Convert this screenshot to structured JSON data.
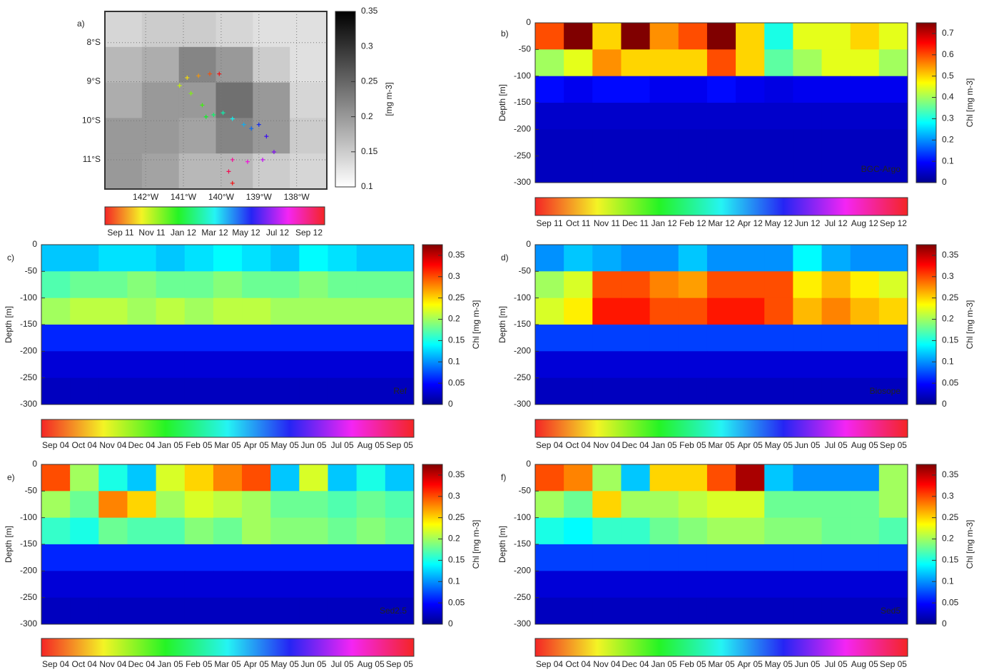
{
  "chart_data": [
    {
      "type": "map",
      "label": "a)",
      "xlim": [
        -143.08,
        -137.2
      ],
      "ylim": [
        -11.75,
        -7.2
      ],
      "xticks": [
        {
          "value": -142,
          "label": "142°W"
        },
        {
          "value": -141,
          "label": "141°W"
        },
        {
          "value": -140,
          "label": "140°W"
        },
        {
          "value": -139,
          "label": "139°W"
        },
        {
          "value": -138,
          "label": "138°W"
        }
      ],
      "yticks": [
        {
          "value": -8,
          "label": "8°S"
        },
        {
          "value": -9,
          "label": "9°S"
        },
        {
          "value": -10,
          "label": "10°S"
        },
        {
          "value": -11,
          "label": "11°S"
        }
      ],
      "field": [
        [
          0.14,
          0.15,
          0.15,
          0.14,
          0.13,
          0.13
        ],
        [
          0.17,
          0.18,
          0.22,
          0.2,
          0.15,
          0.13
        ],
        [
          0.18,
          0.2,
          0.2,
          0.24,
          0.2,
          0.14
        ],
        [
          0.2,
          0.2,
          0.19,
          0.22,
          0.2,
          0.15
        ],
        [
          0.2,
          0.19,
          0.17,
          0.17,
          0.15,
          0.14
        ]
      ],
      "zlim": [
        0.1,
        0.35
      ],
      "zticks": [
        0.1,
        0.15,
        0.2,
        0.25,
        0.3,
        0.35
      ],
      "zlabel": "[mg m-3]",
      "x": [
        -140.05,
        -140.3,
        -140.6,
        -140.9,
        -141.1,
        -140.8,
        -140.5,
        -140.4,
        -140.2,
        -139.95,
        -139.7,
        -139.4,
        -139.2,
        -139.0,
        -138.8,
        -138.6,
        -138.9,
        -139.3,
        -139.7,
        -139.8,
        -139.7
      ],
      "y": [
        -8.8,
        -8.8,
        -8.85,
        -8.9,
        -9.1,
        -9.3,
        -9.6,
        -9.9,
        -9.85,
        -9.8,
        -9.95,
        -10.1,
        -10.2,
        -10.1,
        -10.4,
        -10.8,
        -11.0,
        -11.05,
        -11.0,
        -11.3,
        -11.6
      ],
      "time_categories": [
        "Sep 11",
        "Nov 11",
        "Jan 12",
        "Mar 12",
        "May 12",
        "Jul 12",
        "Sep 12"
      ]
    },
    {
      "type": "heatmap",
      "label": "b)",
      "tag": "BGC-Argo",
      "ylabel": "Depth [m]",
      "zlabel": "Chl [mg m-3]",
      "ylim": [
        -300,
        0
      ],
      "yticks": [
        0,
        -50,
        -100,
        -150,
        -200,
        -250,
        -300
      ],
      "depth_bins": [
        0,
        -50,
        -100,
        -150,
        -200,
        -250,
        -300
      ],
      "zlim": [
        0,
        0.75
      ],
      "zticks": [
        0,
        0.1,
        0.2,
        0.3,
        0.4,
        0.5,
        0.6,
        0.7
      ],
      "z": [
        [
          0.6,
          0.75,
          0.5,
          0.75,
          0.55,
          0.6,
          0.75,
          0.5,
          0.3,
          0.45,
          0.45,
          0.5,
          0.45
        ],
        [
          0.4,
          0.45,
          0.55,
          0.5,
          0.5,
          0.5,
          0.6,
          0.5,
          0.35,
          0.4,
          0.45,
          0.45,
          0.4
        ],
        [
          0.1,
          0.08,
          0.1,
          0.1,
          0.08,
          0.08,
          0.1,
          0.08,
          0.07,
          0.08,
          0.08,
          0.08,
          0.08
        ],
        [
          0.05,
          0.05,
          0.05,
          0.05,
          0.05,
          0.05,
          0.05,
          0.05,
          0.05,
          0.05,
          0.05,
          0.05,
          0.05
        ],
        [
          0.04,
          0.04,
          0.04,
          0.04,
          0.04,
          0.04,
          0.04,
          0.04,
          0.04,
          0.04,
          0.04,
          0.04,
          0.04
        ],
        [
          0.04,
          0.04,
          0.04,
          0.04,
          0.04,
          0.04,
          0.04,
          0.04,
          0.04,
          0.04,
          0.04,
          0.04,
          0.04
        ]
      ],
      "time_categories": [
        "Sep 11",
        "Oct 11",
        "Nov 11",
        "Dec 11",
        "Jan 12",
        "Feb 12",
        "Mar 12",
        "Apr 12",
        "May 12",
        "Jun 12",
        "Jul 12",
        "Aug 12",
        "Sep 12"
      ]
    },
    {
      "type": "heatmap",
      "label": "c)",
      "tag": "Ref",
      "ylabel": "Depth [m]",
      "zlabel": "Chl [mg m-3]",
      "ylim": [
        -300,
        0
      ],
      "yticks": [
        0,
        -50,
        -100,
        -150,
        -200,
        -250,
        -300
      ],
      "depth_bins": [
        0,
        -50,
        -100,
        -150,
        -200,
        -250,
        -300
      ],
      "zlim": [
        0,
        0.375
      ],
      "zticks": [
        0,
        0.05,
        0.1,
        0.15,
        0.2,
        0.25,
        0.3,
        0.35
      ],
      "z": [
        [
          0.12,
          0.12,
          0.13,
          0.13,
          0.12,
          0.13,
          0.14,
          0.13,
          0.12,
          0.14,
          0.13,
          0.12,
          0.12
        ],
        [
          0.17,
          0.18,
          0.18,
          0.19,
          0.18,
          0.18,
          0.19,
          0.18,
          0.18,
          0.19,
          0.18,
          0.18,
          0.18
        ],
        [
          0.2,
          0.21,
          0.21,
          0.2,
          0.21,
          0.2,
          0.21,
          0.21,
          0.2,
          0.2,
          0.2,
          0.2,
          0.2
        ],
        [
          0.06,
          0.06,
          0.06,
          0.06,
          0.06,
          0.06,
          0.06,
          0.06,
          0.06,
          0.06,
          0.06,
          0.06,
          0.06
        ],
        [
          0.03,
          0.03,
          0.03,
          0.03,
          0.03,
          0.03,
          0.03,
          0.03,
          0.03,
          0.03,
          0.03,
          0.03,
          0.03
        ],
        [
          0.02,
          0.02,
          0.02,
          0.02,
          0.02,
          0.02,
          0.02,
          0.02,
          0.02,
          0.02,
          0.02,
          0.02,
          0.02
        ]
      ],
      "time_categories": [
        "Sep 04",
        "Oct 04",
        "Nov 04",
        "Dec 04",
        "Jan 05",
        "Feb 05",
        "Mar 05",
        "Apr 05",
        "May 05",
        "Jun 05",
        "Jul 05",
        "Aug 05",
        "Sep 05"
      ]
    },
    {
      "type": "heatmap",
      "label": "d)",
      "tag": "Biosope",
      "ylabel": "Depth [m]",
      "zlabel": "Chl [mg m-3]",
      "ylim": [
        -300,
        0
      ],
      "yticks": [
        0,
        -50,
        -100,
        -150,
        -200,
        -250,
        -300
      ],
      "depth_bins": [
        0,
        -50,
        -100,
        -150,
        -200,
        -250,
        -300
      ],
      "zlim": [
        0,
        0.375
      ],
      "zticks": [
        0,
        0.05,
        0.1,
        0.15,
        0.2,
        0.25,
        0.3,
        0.35
      ],
      "z": [
        [
          0.1,
          0.12,
          0.11,
          0.1,
          0.1,
          0.12,
          0.1,
          0.1,
          0.1,
          0.14,
          0.11,
          0.1,
          0.1
        ],
        [
          0.2,
          0.22,
          0.3,
          0.3,
          0.28,
          0.27,
          0.3,
          0.3,
          0.3,
          0.24,
          0.26,
          0.24,
          0.22
        ],
        [
          0.22,
          0.24,
          0.32,
          0.32,
          0.3,
          0.3,
          0.32,
          0.32,
          0.3,
          0.26,
          0.28,
          0.26,
          0.25
        ],
        [
          0.07,
          0.07,
          0.07,
          0.07,
          0.07,
          0.07,
          0.07,
          0.07,
          0.07,
          0.07,
          0.07,
          0.07,
          0.07
        ],
        [
          0.03,
          0.03,
          0.03,
          0.03,
          0.03,
          0.03,
          0.03,
          0.03,
          0.03,
          0.03,
          0.03,
          0.03,
          0.03
        ],
        [
          0.02,
          0.02,
          0.02,
          0.02,
          0.02,
          0.02,
          0.02,
          0.02,
          0.02,
          0.02,
          0.02,
          0.02,
          0.02
        ]
      ],
      "time_categories": [
        "Sep 04",
        "Oct 04",
        "Nov 04",
        "Dec 04",
        "Jan 05",
        "Feb 05",
        "Mar 05",
        "Apr 05",
        "May 05",
        "Jun 05",
        "Jul 05",
        "Aug 05",
        "Sep 05"
      ]
    },
    {
      "type": "heatmap",
      "label": "e)",
      "tag": "Sed2.5",
      "ylabel": "Depth [m]",
      "zlabel": "Chl [mg m-3]",
      "ylim": [
        -300,
        0
      ],
      "yticks": [
        0,
        -50,
        -100,
        -150,
        -200,
        -250,
        -300
      ],
      "depth_bins": [
        0,
        -50,
        -100,
        -150,
        -200,
        -250,
        -300
      ],
      "zlim": [
        0,
        0.375
      ],
      "zticks": [
        0,
        0.05,
        0.1,
        0.15,
        0.2,
        0.25,
        0.3,
        0.35
      ],
      "z": [
        [
          0.3,
          0.2,
          0.15,
          0.12,
          0.22,
          0.25,
          0.28,
          0.3,
          0.12,
          0.22,
          0.12,
          0.15,
          0.12
        ],
        [
          0.2,
          0.18,
          0.28,
          0.25,
          0.2,
          0.22,
          0.21,
          0.2,
          0.18,
          0.18,
          0.17,
          0.18,
          0.17
        ],
        [
          0.16,
          0.15,
          0.18,
          0.17,
          0.17,
          0.19,
          0.18,
          0.2,
          0.19,
          0.19,
          0.18,
          0.19,
          0.18
        ],
        [
          0.06,
          0.06,
          0.06,
          0.06,
          0.06,
          0.06,
          0.06,
          0.06,
          0.06,
          0.06,
          0.06,
          0.06,
          0.06
        ],
        [
          0.03,
          0.03,
          0.03,
          0.03,
          0.03,
          0.03,
          0.03,
          0.03,
          0.03,
          0.03,
          0.03,
          0.03,
          0.03
        ],
        [
          0.02,
          0.02,
          0.02,
          0.02,
          0.02,
          0.02,
          0.02,
          0.02,
          0.02,
          0.02,
          0.02,
          0.02,
          0.02
        ]
      ],
      "time_categories": [
        "Sep 04",
        "Oct 04",
        "Nov 04",
        "Dec 04",
        "Jan 05",
        "Feb 05",
        "Mar 05",
        "Apr 05",
        "May 05",
        "Jun 05",
        "Jul 05",
        "Aug 05",
        "Sep 05"
      ]
    },
    {
      "type": "heatmap",
      "label": "f)",
      "tag": "Sed5",
      "ylabel": "Depth [m]",
      "zlabel": "Chl [mg m-3]",
      "ylim": [
        -300,
        0
      ],
      "yticks": [
        0,
        -50,
        -100,
        -150,
        -200,
        -250,
        -300
      ],
      "depth_bins": [
        0,
        -50,
        -100,
        -150,
        -200,
        -250,
        -300
      ],
      "zlim": [
        0,
        0.375
      ],
      "zticks": [
        0,
        0.05,
        0.1,
        0.15,
        0.2,
        0.25,
        0.3,
        0.35
      ],
      "z": [
        [
          0.3,
          0.28,
          0.2,
          0.12,
          0.25,
          0.25,
          0.3,
          0.36,
          0.12,
          0.1,
          0.1,
          0.1,
          0.2
        ],
        [
          0.2,
          0.18,
          0.25,
          0.2,
          0.2,
          0.21,
          0.22,
          0.22,
          0.18,
          0.18,
          0.18,
          0.18,
          0.2
        ],
        [
          0.15,
          0.14,
          0.16,
          0.16,
          0.18,
          0.19,
          0.2,
          0.2,
          0.19,
          0.19,
          0.18,
          0.18,
          0.17
        ],
        [
          0.07,
          0.07,
          0.07,
          0.07,
          0.07,
          0.07,
          0.07,
          0.07,
          0.07,
          0.07,
          0.07,
          0.07,
          0.07
        ],
        [
          0.03,
          0.03,
          0.03,
          0.03,
          0.03,
          0.03,
          0.03,
          0.03,
          0.03,
          0.03,
          0.03,
          0.03,
          0.03
        ],
        [
          0.02,
          0.02,
          0.02,
          0.02,
          0.02,
          0.02,
          0.02,
          0.02,
          0.02,
          0.02,
          0.02,
          0.02,
          0.02
        ]
      ],
      "time_categories": [
        "Sep 04",
        "Oct 04",
        "Nov 04",
        "Dec 04",
        "Jan 05",
        "Feb 05",
        "Mar 05",
        "Apr 05",
        "May 05",
        "Jun 05",
        "Jul 05",
        "Aug 05",
        "Sep 05"
      ]
    }
  ]
}
